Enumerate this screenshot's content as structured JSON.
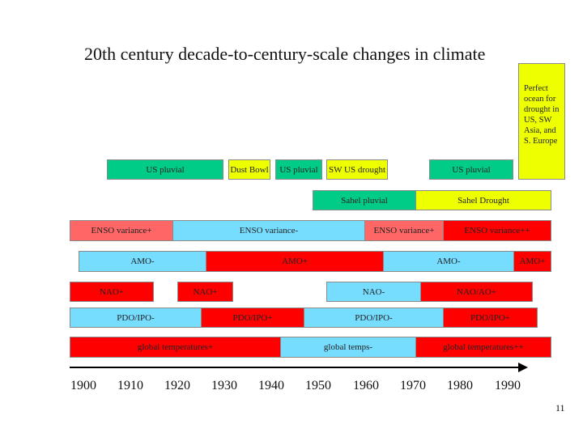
{
  "title": "20th century decade-to-century-scale changes in climate",
  "note": "Perfect ocean for drought in US, SW Asia, and S. Europe",
  "rows": {
    "pluvial": [
      "US pluvial",
      "Dust Bowl",
      "US pluvial",
      "SW US drought",
      "US pluvial"
    ],
    "sahel": [
      "Sahel pluvial",
      "Sahel Drought"
    ],
    "enso": [
      "ENSO variance+",
      "ENSO variance-",
      "ENSO variance+",
      "ENSO variance++"
    ],
    "amo": [
      "AMO-",
      "AMO+",
      "AMO-",
      "AMO+"
    ],
    "nao": [
      "NAO+",
      "NAO+",
      "NAO-",
      "NAO/AO+"
    ],
    "pdo": [
      "PDO/IPO-",
      "PDO/IPO+",
      "PDO/IPO-",
      "PDO/IPO+"
    ],
    "temps": [
      "global temperatures+",
      "global temps-",
      "global temperatures++"
    ]
  },
  "axis": {
    "years": [
      "1900",
      "1910",
      "1920",
      "1930",
      "1940",
      "1950",
      "1960",
      "1970",
      "1980",
      "1990"
    ]
  },
  "colors": {
    "green": "#00cc88",
    "yellow": "#eeff00",
    "red": "#ff0000",
    "pink": "#ff6666",
    "blue": "#77ddff"
  },
  "page_number": "11"
}
